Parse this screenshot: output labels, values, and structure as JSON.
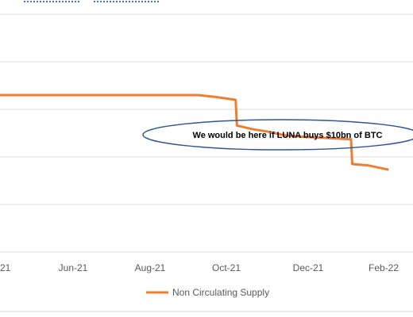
{
  "chart_data": {
    "type": "line",
    "x_tick_labels": [
      "21",
      "Jun-21",
      "Aug-21",
      "Oct-21",
      "Dec-21",
      "Feb-22"
    ],
    "series": [
      {
        "name": "Non Circulating Supply",
        "color": "#ED7D31",
        "points": [
          [
            "2021-04-01",
            0.83
          ],
          [
            "2021-09-06",
            0.83
          ],
          [
            "2021-09-20",
            0.826
          ],
          [
            "2021-10-06",
            0.82
          ],
          [
            "2021-10-07",
            0.766
          ],
          [
            "2021-10-20",
            0.758
          ],
          [
            "2021-11-01",
            0.753
          ],
          [
            "2021-11-15",
            0.745
          ],
          [
            "2021-12-01",
            0.742
          ],
          [
            "2022-01-06",
            0.737
          ],
          [
            "2022-01-07",
            0.685
          ],
          [
            "2022-01-20",
            0.682
          ],
          [
            "2022-02-05",
            0.673
          ]
        ]
      }
    ],
    "grid": true,
    "legend_position": "bottom",
    "annotation": "We would be here if LUNA buys $10bn of BTC"
  }
}
